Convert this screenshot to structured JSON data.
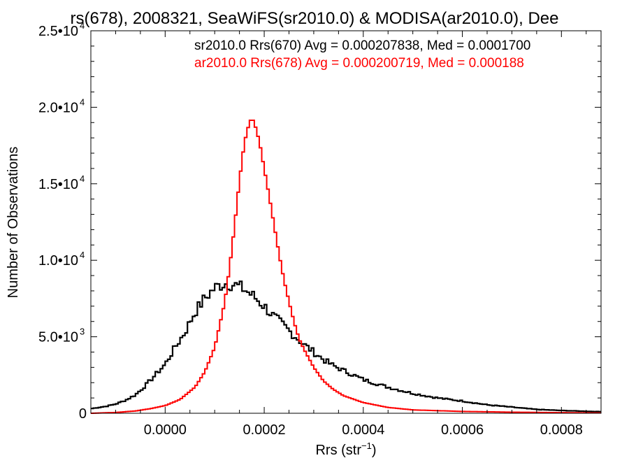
{
  "chart_data": {
    "type": "line",
    "title": "rs(678), 2008321, SeaWiFS(sr2010.0) & MODISA(ar2010.0), Dee",
    "xlabel": "Rrs (str",
    "xlabel_sup": "−1",
    "xlabel_close": ")",
    "ylabel": "Number of Observations",
    "xlim": [
      -0.00015,
      0.00088
    ],
    "ylim": [
      0,
      25000
    ],
    "grid": false,
    "legend_position": "top-right",
    "x_ticks": [
      {
        "value": 0.0,
        "label": "0.0000"
      },
      {
        "value": 0.0002,
        "label": "0.0002"
      },
      {
        "value": 0.0004,
        "label": "0.0004"
      },
      {
        "value": 0.0006,
        "label": "0.0006"
      },
      {
        "value": 0.0008,
        "label": "0.0008"
      }
    ],
    "y_ticks": [
      {
        "value": 0,
        "mant": "0",
        "exp": ""
      },
      {
        "value": 5000,
        "mant": "5.0•10",
        "exp": "3"
      },
      {
        "value": 10000,
        "mant": "1.0•10",
        "exp": "4"
      },
      {
        "value": 15000,
        "mant": "1.5•10",
        "exp": "4"
      },
      {
        "value": 20000,
        "mant": "2.0•10",
        "exp": "4"
      },
      {
        "value": 25000,
        "mant": "2.5•10",
        "exp": "4"
      }
    ],
    "bin_width": 5e-06,
    "series": [
      {
        "name": "sr2010.0 Rrs(670) Avg = 0.000207838, Med = 0.0001700",
        "color": "#000000",
        "style": "step",
        "jitter": 450,
        "x": [
          -0.00015,
          -0.00012,
          -0.0001,
          -8e-05,
          -6e-05,
          -4e-05,
          -2e-05,
          0.0,
          2e-05,
          4e-05,
          6e-05,
          8e-05,
          0.0001,
          0.00012,
          0.00014,
          0.00016,
          0.00018,
          0.0002,
          0.00022,
          0.00024,
          0.00026,
          0.00028,
          0.0003,
          0.00032,
          0.00034,
          0.00036,
          0.0004,
          0.00045,
          0.0005,
          0.00055,
          0.0006,
          0.00065,
          0.0007,
          0.00075,
          0.0008,
          0.00088
        ],
        "y": [
          300,
          450,
          600,
          850,
          1200,
          1800,
          2500,
          3200,
          4300,
          5300,
          6600,
          7500,
          8200,
          8500,
          8400,
          8100,
          7600,
          7000,
          6300,
          5700,
          5100,
          4500,
          4000,
          3500,
          3100,
          2800,
          2200,
          1700,
          1300,
          1000,
          800,
          550,
          400,
          250,
          180,
          100
        ]
      },
      {
        "name": "ar2010.0 Rrs(678) Avg = 0.000200719, Med = 0.000188",
        "color": "#ff0000",
        "style": "step",
        "jitter": 0,
        "x": [
          -0.00015,
          -0.0001,
          -6e-05,
          -3e-05,
          0.0,
          3e-05,
          6e-05,
          8e-05,
          0.0001,
          0.00012,
          0.00013,
          0.00014,
          0.00015,
          0.00016,
          0.00017,
          0.000175,
          0.00018,
          0.00019,
          0.0002,
          0.00021,
          0.00022,
          0.00023,
          0.00024,
          0.00025,
          0.00026,
          0.00027,
          0.00028,
          0.0003,
          0.00032,
          0.00034,
          0.00036,
          0.0004,
          0.00045,
          0.0005,
          0.0006,
          0.0007,
          0.0008,
          0.00088
        ],
        "y": [
          0,
          50,
          150,
          300,
          500,
          900,
          1700,
          2700,
          4300,
          7200,
          9500,
          12200,
          15200,
          17700,
          19000,
          19300,
          19000,
          17800,
          16000,
          14200,
          12300,
          10400,
          8700,
          7300,
          6000,
          4900,
          4200,
          3000,
          2100,
          1550,
          1150,
          700,
          380,
          220,
          120,
          70,
          40,
          20
        ]
      }
    ]
  }
}
